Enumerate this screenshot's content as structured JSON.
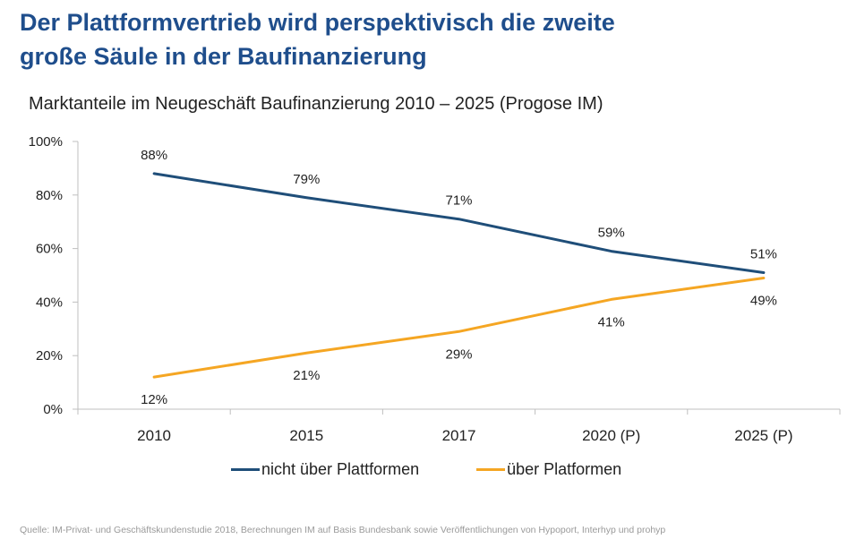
{
  "header": {
    "title_line1": "Der Plattformvertrieb wird perspektivisch die zweite",
    "title_line2": "große Säule in der Baufinanzierung"
  },
  "chart_data": {
    "type": "line",
    "title": "Marktanteile im Neugeschäft Baufinanzierung 2010 – 2025 (Progose IM)",
    "categories": [
      "2010",
      "2015",
      "2017",
      "2020 (P)",
      "2025 (P)"
    ],
    "ylim": [
      0,
      100
    ],
    "yticks": [
      0,
      20,
      40,
      60,
      80,
      100
    ],
    "ytick_labels": [
      "0%",
      "20%",
      "40%",
      "60%",
      "80%",
      "100%"
    ],
    "grid": false,
    "legend_position": "bottom",
    "series": [
      {
        "name": "nicht über Plattformen",
        "values": [
          88,
          79,
          71,
          59,
          51
        ],
        "labels": [
          "88%",
          "79%",
          "71%",
          "59%",
          "51%"
        ],
        "label_position": "above",
        "color": "#1F4E79"
      },
      {
        "name": "über Platformen",
        "values": [
          12,
          21,
          29,
          41,
          49
        ],
        "labels": [
          "12%",
          "21%",
          "29%",
          "41%",
          "49%"
        ],
        "label_position": "below",
        "color": "#F5A623"
      }
    ]
  },
  "footer": {
    "source": "Quelle: IM-Privat- und Geschäftskundenstudie 2018, Berechnungen  IM auf Basis Bundesbank sowie Veröffentlichungen von Hypoport, Interhyp und prohyp"
  }
}
